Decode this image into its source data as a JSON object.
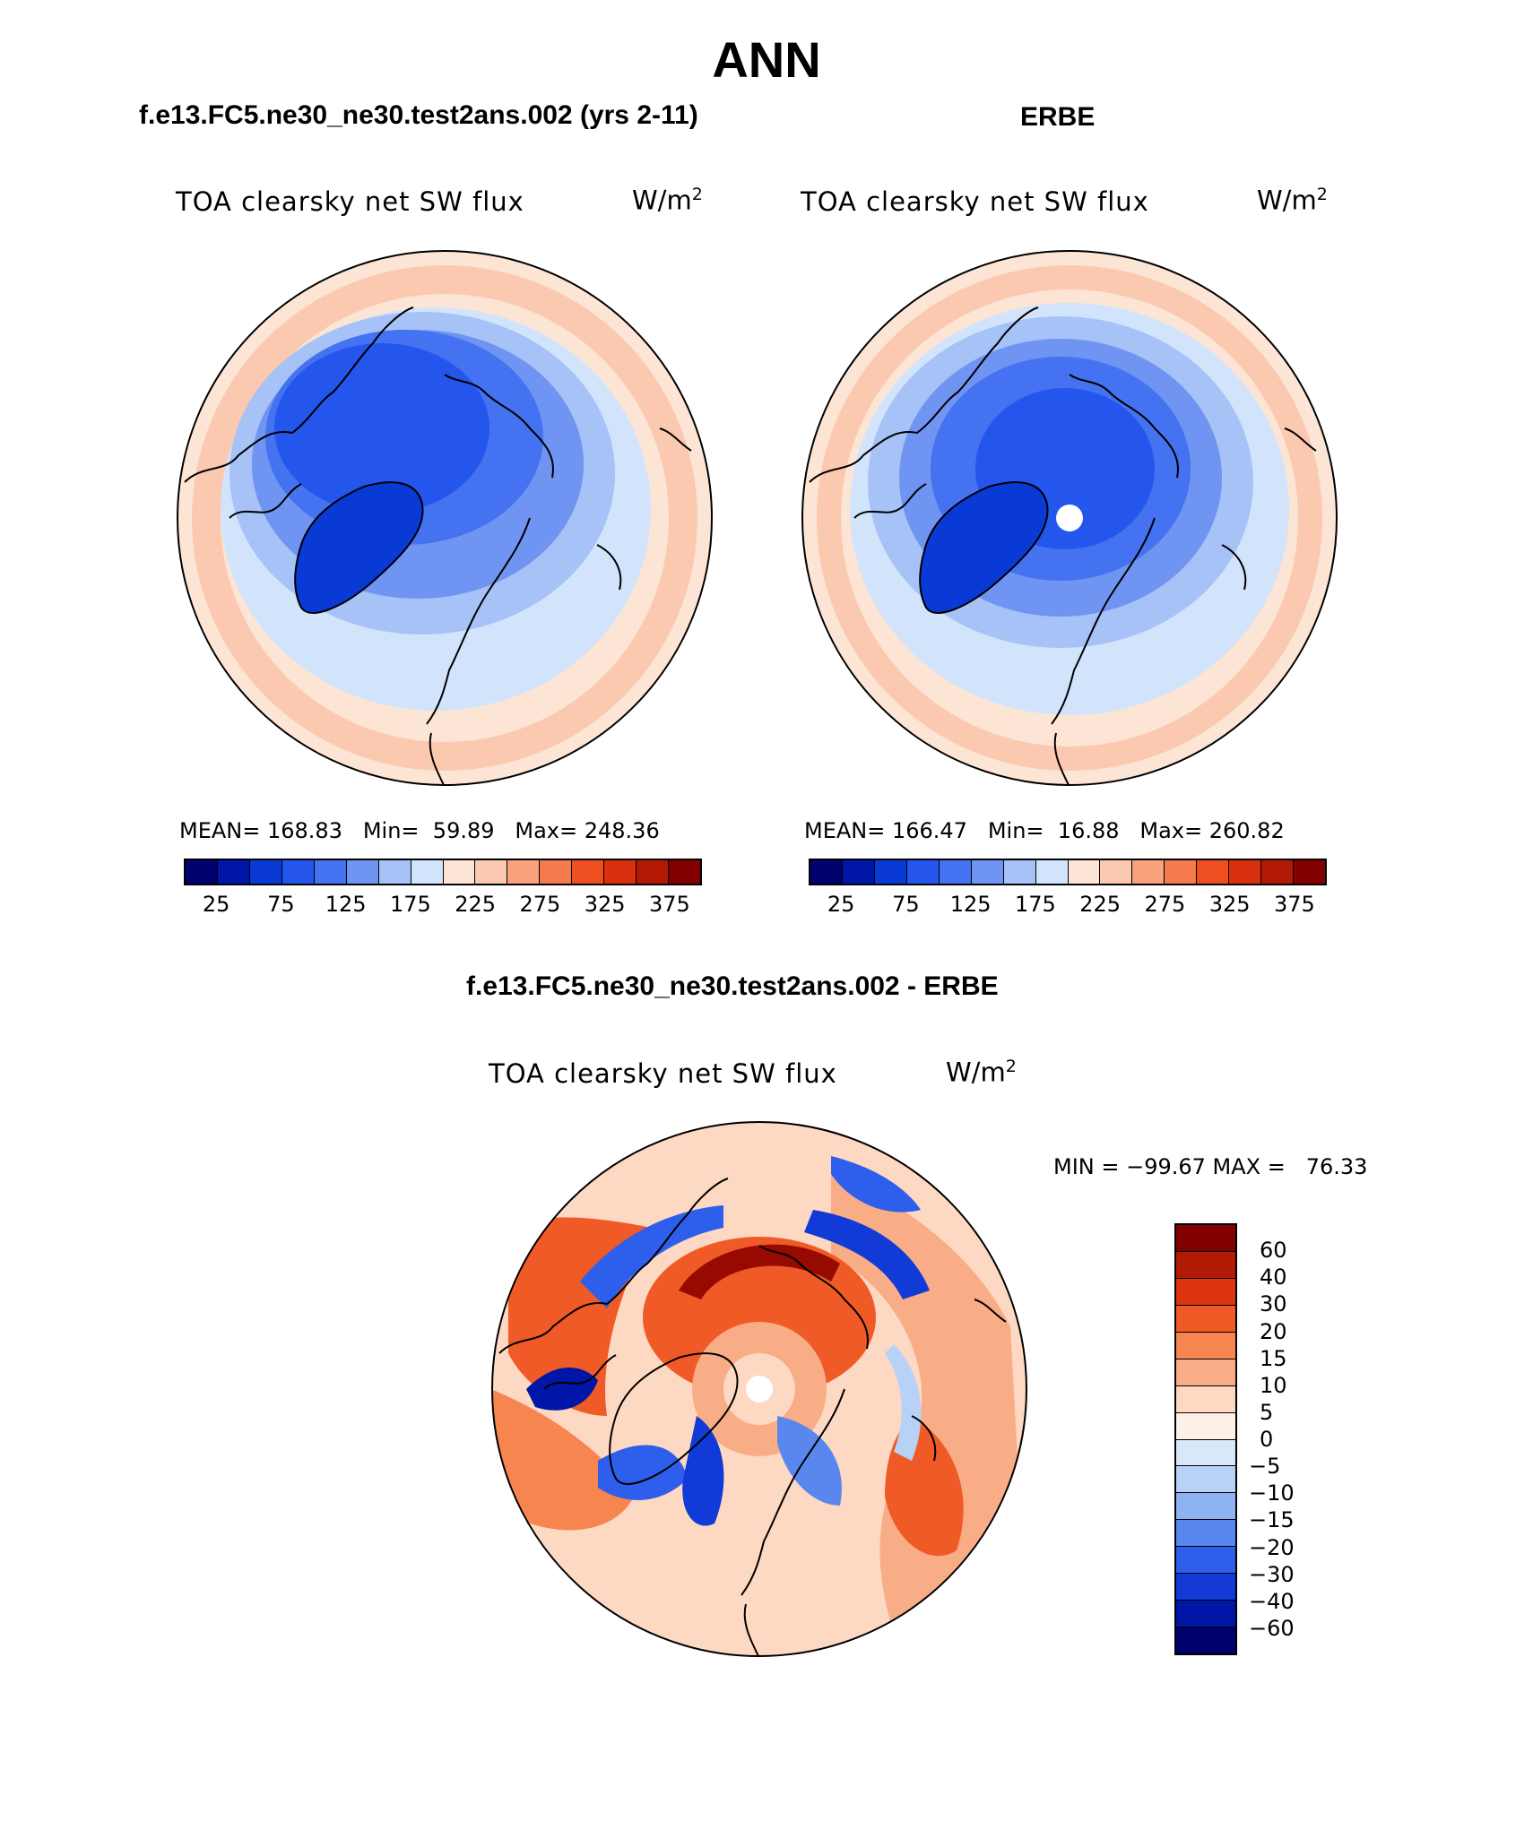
{
  "main_title": "ANN",
  "panels": {
    "left": {
      "title": "f.e13.FC5.ne30_ne30.test2ans.002 (yrs 2-11)",
      "variable": "TOA clearsky net SW flux",
      "units_base": "W/m",
      "units_exp": "2",
      "stats_text": "MEAN= 168.83   Min=  59.89   Max= 248.36"
    },
    "right": {
      "title": "ERBE",
      "variable": "TOA clearsky net SW flux",
      "units_base": "W/m",
      "units_exp": "2",
      "stats_text": "MEAN= 166.47   Min=  16.88   Max= 260.82"
    },
    "diff": {
      "title": "f.e13.FC5.ne30_ne30.test2ans.002 - ERBE",
      "variable": "TOA clearsky net SW flux",
      "units_base": "W/m",
      "units_exp": "2",
      "stats_text": "MIN = −99.67 MAX =   76.33"
    }
  },
  "colorbar_abs": {
    "colors": [
      "#00006e",
      "#0016a6",
      "#0a3ad6",
      "#2456ee",
      "#4472f0",
      "#6f94f2",
      "#a6c2f6",
      "#d2e4fb",
      "#fde5d5",
      "#fbc8b0",
      "#f9a27c",
      "#f57a4e",
      "#ef4e21",
      "#d9300f",
      "#b31a06",
      "#830000"
    ],
    "tick_labels": [
      "25",
      "75",
      "125",
      "175",
      "225",
      "275",
      "325",
      "375"
    ]
  },
  "colorbar_diff": {
    "colors": [
      "#830000",
      "#b31a06",
      "#dc3510",
      "#f05a26",
      "#f7854f",
      "#f9ad87",
      "#fdd8c2",
      "#fdf0e8",
      "#d8e8fa",
      "#b8d2f7",
      "#8eb3f3",
      "#5a87ee",
      "#2e5eec",
      "#113ad6",
      "#0016a6",
      "#00006e"
    ],
    "tick_labels": [
      "60",
      "40",
      "30",
      "20",
      "15",
      "10",
      "5",
      "0",
      "−5",
      "−10",
      "−15",
      "−20",
      "−30",
      "−40",
      "−60"
    ]
  }
}
